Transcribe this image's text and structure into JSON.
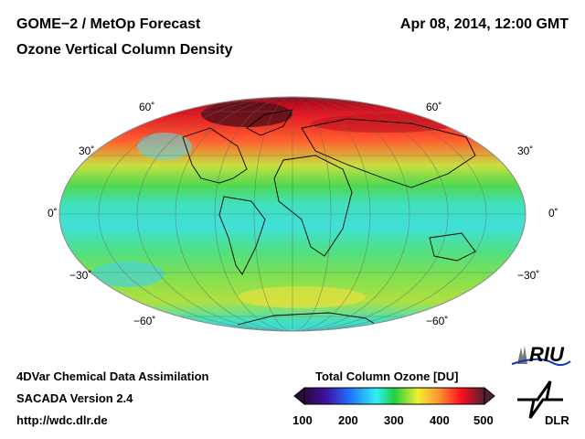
{
  "header": {
    "title": "GOME−2 / MetOp Forecast",
    "subtitle": "Ozone Vertical Column Density",
    "datetime": "Apr 08, 2014, 12:00 GMT"
  },
  "map": {
    "projection": "Hammer/Mollweide global",
    "lat_labels": [
      "60˚",
      "30˚",
      "0˚",
      "−30˚",
      "−60˚"
    ]
  },
  "footer": {
    "line1": "4DVar Chemical Data Assimilation",
    "line2": "SACADA Version 2.4",
    "line3": "http://wdc.dlr.de"
  },
  "colorbar": {
    "title": "Total Column Ozone [DU]",
    "ticks": [
      "100",
      "200",
      "300",
      "400",
      "500"
    ],
    "colors": [
      "#2a0a3a",
      "#4010a0",
      "#2060ff",
      "#30e0f0",
      "#20d040",
      "#f0f030",
      "#ff9030",
      "#ff1020",
      "#902020",
      "#502030"
    ]
  },
  "logos": {
    "riu": "RIU",
    "dlr": "DLR"
  }
}
